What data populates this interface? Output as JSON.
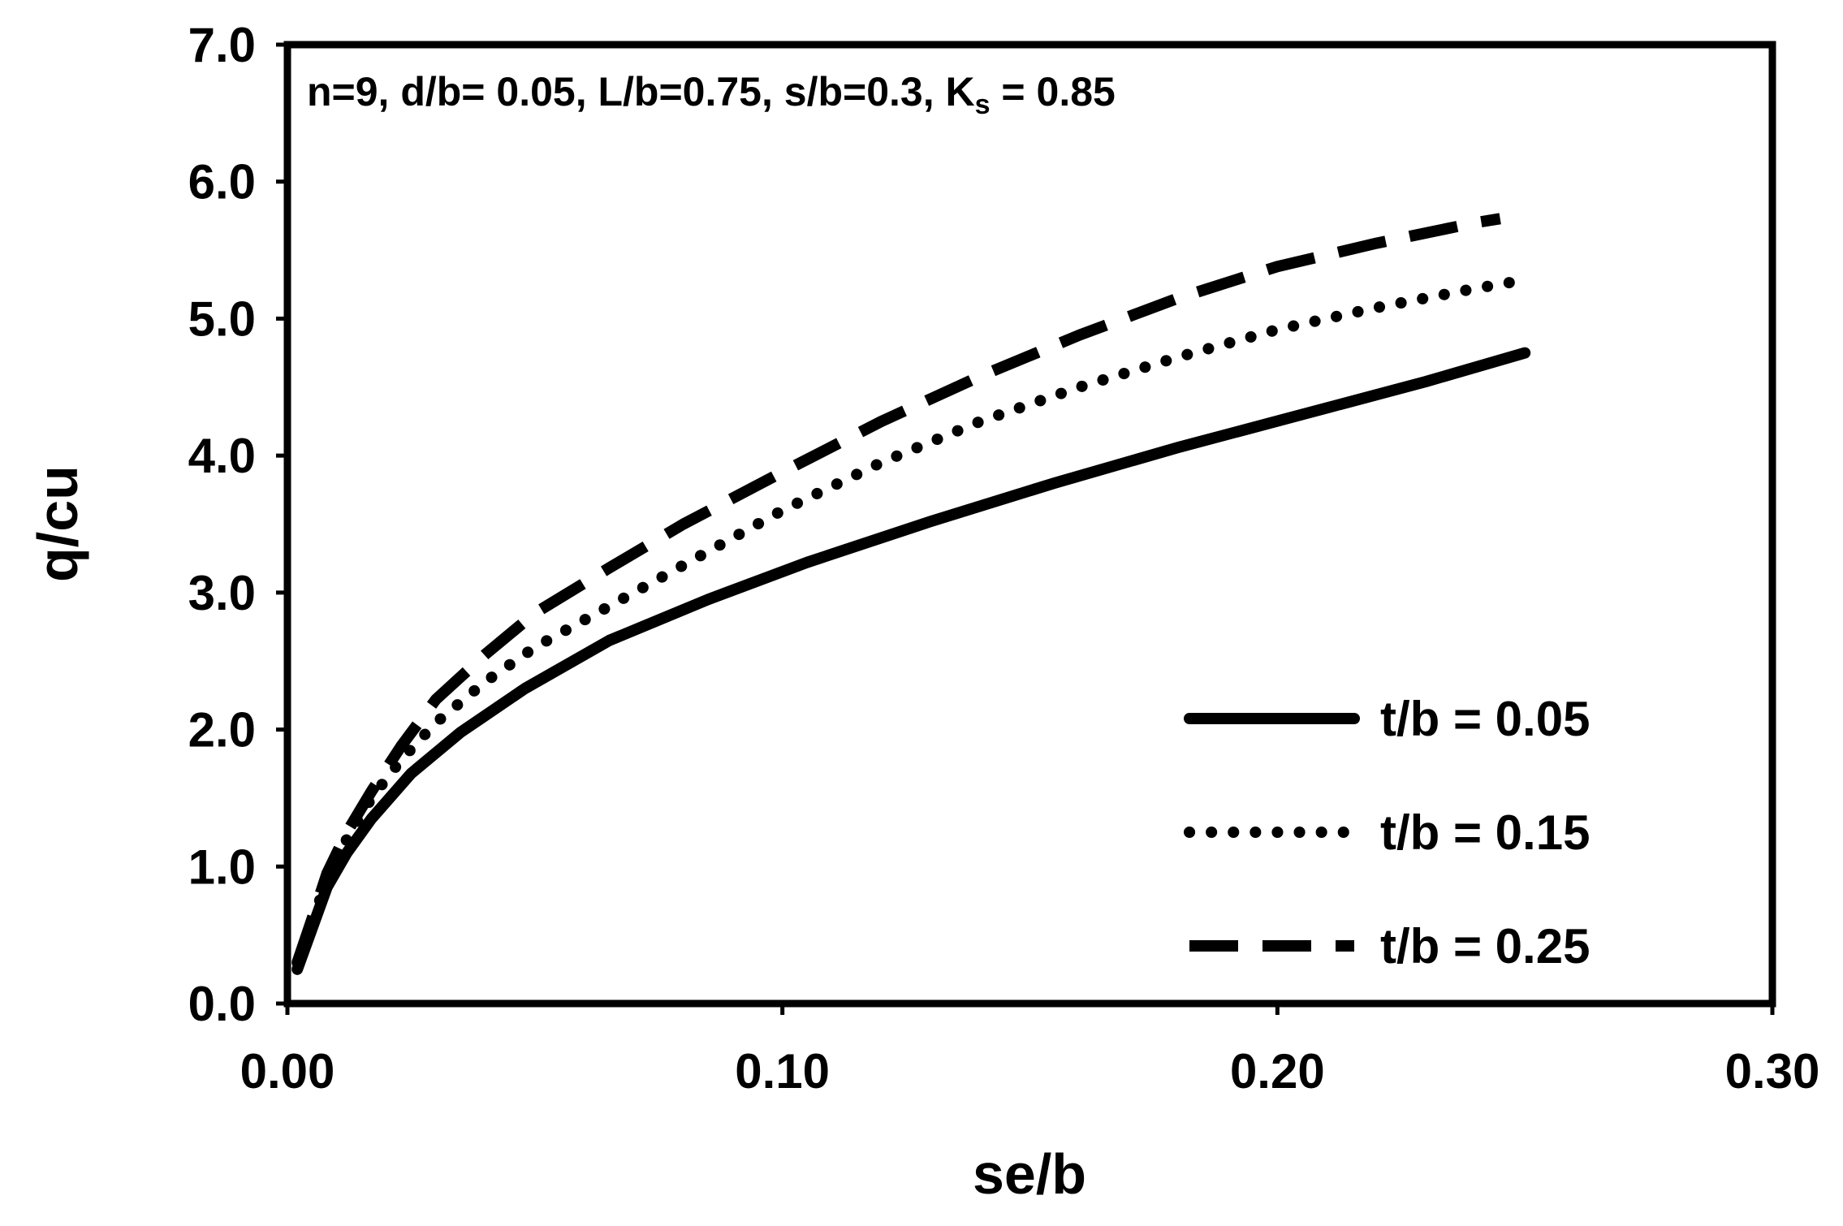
{
  "chart_data": {
    "type": "line",
    "title": "",
    "xlabel": "se/b",
    "ylabel": "q/cu",
    "xlim": [
      0,
      0.3
    ],
    "ylim": [
      0,
      7.0
    ],
    "xticks": [
      0.0,
      0.1,
      0.2,
      0.3
    ],
    "xtick_labels": [
      "0.00",
      "0.10",
      "0.20",
      "0.30"
    ],
    "yticks": [
      0,
      1,
      2,
      3,
      4,
      5,
      6,
      7
    ],
    "ytick_labels": [
      "0.0",
      "1.0",
      "2.0",
      "3.0",
      "4.0",
      "5.0",
      "6.0",
      "7.0"
    ],
    "grid": false,
    "legend_position": "bottom-right",
    "annotation": {
      "prefix": "n=9, d/b= 0.05, L/b=0.75, s/b=0.3, K",
      "subscript": "s",
      "suffix": " = 0.85"
    },
    "series": [
      {
        "name": "t/b = 0.05",
        "style": "solid",
        "x": [
          0.002,
          0.005,
          0.008,
          0.012,
          0.017,
          0.025,
          0.035,
          0.048,
          0.065,
          0.085,
          0.105,
          0.13,
          0.155,
          0.18,
          0.205,
          0.23,
          0.25
        ],
        "y": [
          0.25,
          0.55,
          0.85,
          1.1,
          1.35,
          1.68,
          1.98,
          2.3,
          2.65,
          2.95,
          3.22,
          3.52,
          3.8,
          4.06,
          4.3,
          4.54,
          4.75
        ]
      },
      {
        "name": "t/b = 0.15",
        "style": "dotted",
        "x": [
          0.002,
          0.005,
          0.008,
          0.012,
          0.017,
          0.023,
          0.03,
          0.04,
          0.05,
          0.065,
          0.08,
          0.1,
          0.12,
          0.14,
          0.16,
          0.18,
          0.2,
          0.22,
          0.24,
          0.248
        ],
        "y": [
          0.3,
          0.6,
          0.9,
          1.2,
          1.5,
          1.78,
          2.05,
          2.35,
          2.6,
          2.9,
          3.2,
          3.6,
          3.95,
          4.25,
          4.5,
          4.72,
          4.92,
          5.08,
          5.22,
          5.27
        ]
      },
      {
        "name": "t/b = 0.25",
        "style": "dashed",
        "x": [
          0.002,
          0.005,
          0.008,
          0.012,
          0.017,
          0.023,
          0.03,
          0.04,
          0.05,
          0.065,
          0.08,
          0.1,
          0.12,
          0.14,
          0.16,
          0.18,
          0.2,
          0.22,
          0.24,
          0.245
        ],
        "y": [
          0.3,
          0.62,
          0.95,
          1.25,
          1.55,
          1.88,
          2.22,
          2.55,
          2.85,
          3.18,
          3.5,
          3.88,
          4.25,
          4.58,
          4.88,
          5.15,
          5.38,
          5.55,
          5.7,
          5.73
        ]
      }
    ]
  }
}
